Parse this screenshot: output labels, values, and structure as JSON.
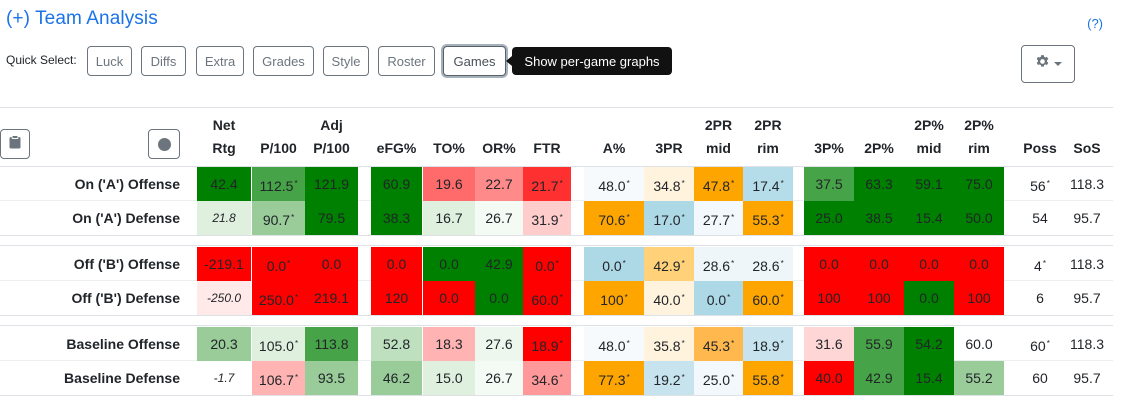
{
  "title": "(+) Team Analysis",
  "help_link": "(?)",
  "quick_select": {
    "label": "Quick Select:",
    "buttons": [
      "Luck",
      "Diffs",
      "Extra",
      "Grades",
      "Style",
      "Roster",
      "Games"
    ],
    "active": "Games",
    "tooltip": "Show per-game graphs"
  },
  "icons": {
    "settings": "gear-icon",
    "copy": "clipboard-icon",
    "record": "circle-icon"
  },
  "colors": {
    "dark_green": "#008000",
    "mid_green": "#47a347",
    "light_green": "#99cc99",
    "pale_green": "#dff0df",
    "red": "#ff0000",
    "mid_red": "#ff6a6a",
    "light_red": "#ffb3b3",
    "pale_red": "#ffe9e9",
    "orange": "#ffa500",
    "light_orange": "#ffd27a",
    "pale_orange": "#fff3de",
    "blue": "#add8e6",
    "pale_blue": "#e3f2f8",
    "accent": "#1a73e8"
  },
  "columns": {
    "net_rtg": [
      "Net",
      "Rtg"
    ],
    "p100": [
      "",
      "P/100"
    ],
    "adj_p100": [
      "Adj",
      "P/100"
    ],
    "efg": [
      "",
      "eFG%"
    ],
    "to": [
      "",
      "TO%"
    ],
    "or": [
      "",
      "OR%"
    ],
    "ftr": [
      "",
      "FTR"
    ],
    "a": [
      "",
      "A%"
    ],
    "threepr": [
      "",
      "3PR"
    ],
    "twopr_mid": [
      "2PR",
      "mid"
    ],
    "twopr_rim": [
      "2PR",
      "rim"
    ],
    "threep": [
      "",
      "3P%"
    ],
    "twop": [
      "",
      "2P%"
    ],
    "twop_mid": [
      "2P%",
      "mid"
    ],
    "twop_rim": [
      "2P%",
      "rim"
    ],
    "poss": [
      "",
      "Poss"
    ],
    "sos": [
      "",
      "SoS"
    ]
  },
  "rows": [
    {
      "label": "On ('A') Offense",
      "cells": [
        {
          "v": "42.4",
          "c": "#008000"
        },
        {
          "v": "112.5",
          "s": "*",
          "c": "#47a347"
        },
        {
          "v": "121.9",
          "c": "#008000"
        },
        {
          "v": "60.9",
          "c": "#008000"
        },
        {
          "v": "19.6",
          "c": "#ff6a6a"
        },
        {
          "v": "22.7",
          "c": "#ff8a8a"
        },
        {
          "v": "21.7",
          "s": "*",
          "c": "#ff3030"
        },
        {
          "v": "48.0",
          "s": "*",
          "c": "#f7fafc"
        },
        {
          "v": "34.8",
          "s": "*",
          "c": "#fff3de"
        },
        {
          "v": "47.8",
          "s": "*",
          "c": "#ffa500"
        },
        {
          "v": "17.4",
          "s": "*",
          "c": "#b5dce9"
        },
        {
          "v": "37.5",
          "c": "#47a347"
        },
        {
          "v": "63.3",
          "c": "#008000"
        },
        {
          "v": "59.1",
          "c": "#008000"
        },
        {
          "v": "75.0",
          "c": "#008000"
        },
        {
          "v": "56",
          "s": "*",
          "c": ""
        },
        {
          "v": "118.3",
          "c": ""
        }
      ]
    },
    {
      "label": "On ('A') Defense",
      "cells": [
        {
          "v": "21.8",
          "c": "#dff0df",
          "i": true
        },
        {
          "v": "90.7",
          "s": "*",
          "c": "#99cc99"
        },
        {
          "v": "79.5",
          "c": "#008000"
        },
        {
          "v": "38.3",
          "c": "#008000"
        },
        {
          "v": "16.7",
          "c": "#dff0df"
        },
        {
          "v": "26.7",
          "c": "#f4faf4"
        },
        {
          "v": "31.9",
          "s": "*",
          "c": "#ffcccc"
        },
        {
          "v": "70.6",
          "s": "*",
          "c": "#ffa500"
        },
        {
          "v": "17.0",
          "s": "*",
          "c": "#add8e6"
        },
        {
          "v": "27.7",
          "s": "*",
          "c": "#f2f8fb"
        },
        {
          "v": "55.3",
          "s": "*",
          "c": "#ffa500"
        },
        {
          "v": "25.0",
          "c": "#008000"
        },
        {
          "v": "38.5",
          "c": "#008000"
        },
        {
          "v": "15.4",
          "c": "#008000"
        },
        {
          "v": "50.0",
          "c": "#008000"
        },
        {
          "v": "54",
          "c": ""
        },
        {
          "v": "95.7",
          "c": ""
        }
      ]
    },
    {
      "label": "Off ('B') Offense",
      "cells": [
        {
          "v": "-219.1",
          "c": "#ff0000"
        },
        {
          "v": "0.0",
          "s": "*",
          "c": "#ff0000"
        },
        {
          "v": "0.0",
          "c": "#ff0000"
        },
        {
          "v": "0.0",
          "c": "#ff0000"
        },
        {
          "v": "0.0",
          "c": "#008000"
        },
        {
          "v": "42.9",
          "c": "#008000"
        },
        {
          "v": "0.0",
          "s": "*",
          "c": "#ff0000"
        },
        {
          "v": "0.0",
          "s": "*",
          "c": "#add8e6"
        },
        {
          "v": "42.9",
          "s": "*",
          "c": "#ffd27a"
        },
        {
          "v": "28.6",
          "s": "*",
          "c": "#eef6fa"
        },
        {
          "v": "28.6",
          "s": "*",
          "c": "#eef6fa"
        },
        {
          "v": "0.0",
          "c": "#ff0000"
        },
        {
          "v": "0.0",
          "c": "#ff0000"
        },
        {
          "v": "0.0",
          "c": "#ff0000"
        },
        {
          "v": "0.0",
          "c": "#ff0000"
        },
        {
          "v": "4",
          "s": "*",
          "c": ""
        },
        {
          "v": "118.3",
          "c": ""
        }
      ]
    },
    {
      "label": "Off ('B') Defense",
      "cells": [
        {
          "v": "-250.0",
          "c": "#ffe9e9",
          "i": true
        },
        {
          "v": "250.0",
          "s": "*",
          "c": "#ff0000"
        },
        {
          "v": "219.1",
          "c": "#ff0000"
        },
        {
          "v": "120",
          "c": "#ff0000"
        },
        {
          "v": "0.0",
          "c": "#ff0000"
        },
        {
          "v": "0.0",
          "c": "#008000"
        },
        {
          "v": "60.0",
          "s": "*",
          "c": "#ff0000"
        },
        {
          "v": "100",
          "s": "*",
          "c": "#ffa500"
        },
        {
          "v": "40.0",
          "s": "*",
          "c": "#fff3de"
        },
        {
          "v": "0.0",
          "s": "*",
          "c": "#add8e6"
        },
        {
          "v": "60.0",
          "s": "*",
          "c": "#ffa500"
        },
        {
          "v": "100",
          "c": "#ff0000"
        },
        {
          "v": "100",
          "c": "#ff0000"
        },
        {
          "v": "0.0",
          "c": "#008000"
        },
        {
          "v": "100",
          "c": "#ff0000"
        },
        {
          "v": "6",
          "c": ""
        },
        {
          "v": "95.7",
          "c": ""
        }
      ]
    },
    {
      "label": "Baseline Offense",
      "cells": [
        {
          "v": "20.3",
          "c": "#99cc99"
        },
        {
          "v": "105.0",
          "s": "*",
          "c": "#dff0df"
        },
        {
          "v": "113.8",
          "c": "#47a347"
        },
        {
          "v": "52.8",
          "c": "#bfe0bf"
        },
        {
          "v": "18.3",
          "c": "#ffb3b3"
        },
        {
          "v": "27.6",
          "c": "#eef7ee"
        },
        {
          "v": "18.9",
          "s": "*",
          "c": "#ff0000"
        },
        {
          "v": "48.0",
          "s": "*",
          "c": "#f7fafc"
        },
        {
          "v": "35.8",
          "s": "*",
          "c": "#fff3de"
        },
        {
          "v": "45.3",
          "s": "*",
          "c": "#ffb84d"
        },
        {
          "v": "18.9",
          "s": "*",
          "c": "#c7e4ee"
        },
        {
          "v": "31.6",
          "c": "#ffd6d6"
        },
        {
          "v": "55.9",
          "c": "#47a347"
        },
        {
          "v": "54.2",
          "c": "#008000"
        },
        {
          "v": "60.0",
          "c": ""
        },
        {
          "v": "60",
          "s": "*",
          "c": ""
        },
        {
          "v": "118.3",
          "c": ""
        }
      ]
    },
    {
      "label": "Baseline Defense",
      "cells": [
        {
          "v": "-1.7",
          "c": "",
          "i": true
        },
        {
          "v": "106.7",
          "s": "*",
          "c": "#ffb3b3"
        },
        {
          "v": "93.5",
          "c": "#99cc99"
        },
        {
          "v": "46.2",
          "c": "#99cc99"
        },
        {
          "v": "15.0",
          "c": "#dff0df"
        },
        {
          "v": "26.7",
          "c": "#f4faf4"
        },
        {
          "v": "34.6",
          "s": "*",
          "c": "#ff9999"
        },
        {
          "v": "77.3",
          "s": "*",
          "c": "#ffa500"
        },
        {
          "v": "19.2",
          "s": "*",
          "c": "#c7e4ee"
        },
        {
          "v": "25.0",
          "s": "*",
          "c": "#f2f8fb"
        },
        {
          "v": "55.8",
          "s": "*",
          "c": "#ffa500"
        },
        {
          "v": "40.0",
          "c": "#ff0000"
        },
        {
          "v": "42.9",
          "c": "#47a347"
        },
        {
          "v": "15.4",
          "c": "#008000"
        },
        {
          "v": "55.2",
          "c": "#99cc99"
        },
        {
          "v": "60",
          "c": ""
        },
        {
          "v": "95.7",
          "c": ""
        }
      ]
    }
  ]
}
